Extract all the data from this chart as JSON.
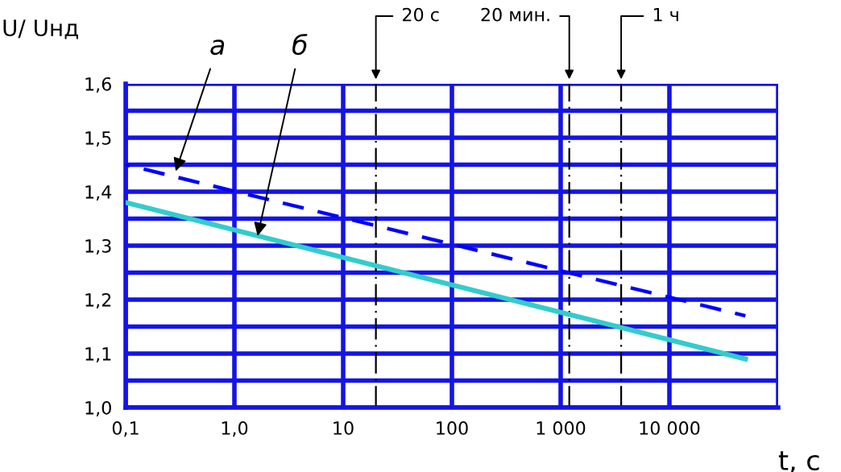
{
  "chart_data": {
    "type": "line",
    "xlabel": "t, с",
    "ylabel": "U/ Uнд",
    "log": "x",
    "x": [
      0.1,
      50000
    ],
    "series": [
      {
        "color": "#0000ff",
        "values": [
          1.45,
          1.17
        ],
        "line_style": "dashed"
      },
      {
        "color": "#33cccc",
        "values": [
          1.38,
          1.09
        ],
        "line_style": "solid"
      }
    ],
    "xlim": [
      0.1,
      100000
    ],
    "xticks": [
      {
        "value": 0.1,
        "label": "0,1"
      },
      {
        "value": 1,
        "label": "1,0"
      },
      10,
      100,
      {
        "value": 1000,
        "label": "1 000"
      },
      {
        "value": 10000,
        "label": "10 000"
      },
      {
        "value": 100000,
        "label": null
      }
    ],
    "ylim": [
      1.0,
      1.6
    ],
    "yticks": [
      {
        "value": 1.0,
        "label": "1,0"
      },
      {
        "value": 1.05,
        "label": null
      },
      {
        "value": 1.1,
        "label": "1,1"
      },
      {
        "value": 1.15,
        "label": null
      },
      {
        "value": 1.2,
        "label": "1,2"
      },
      {
        "value": 1.25,
        "label": null
      },
      {
        "value": 1.3,
        "label": "1,3"
      },
      {
        "value": 1.35,
        "label": null
      },
      {
        "value": 1.4,
        "label": "1,4"
      },
      {
        "value": 1.45,
        "label": null
      },
      {
        "value": 1.5,
        "label": "1,5"
      },
      {
        "value": 1.55,
        "label": null
      },
      {
        "value": 1.6,
        "label": "1,6"
      }
    ],
    "grid": true,
    "ref_lines": [
      {
        "axis": "x",
        "value": 20,
        "label": "20 с",
        "color": "#000000",
        "line_style": "dashdot"
      },
      {
        "axis": "x",
        "value": 1200,
        "label": "20 мин.",
        "color": "#000000",
        "line_style": "dashdot"
      },
      {
        "axis": "x",
        "value": 3600,
        "label": "1 ч",
        "color": "#000000",
        "line_style": "dashdot"
      }
    ],
    "annotations": [
      {
        "text": "а",
        "x": 0.28,
        "y": 1.43
      },
      {
        "text": "б",
        "x": 1.6,
        "y": 1.31
      }
    ]
  }
}
